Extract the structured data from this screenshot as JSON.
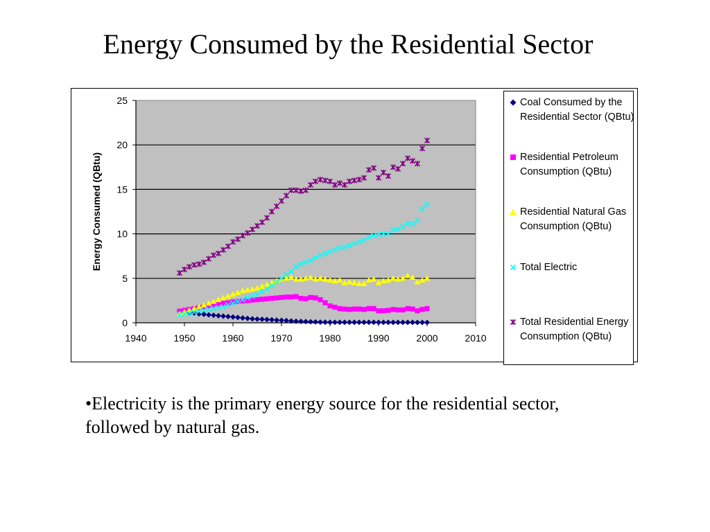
{
  "slide": {
    "title": "Energy Consumed by the Residential Sector",
    "bullet": "•Electricity is the primary energy source for the residential sector, followed by natural gas."
  },
  "chart_data": {
    "type": "scatter",
    "title": "",
    "xlabel": "",
    "ylabel": "Energy Consumed (QBtu)",
    "xlim": [
      1940,
      2010
    ],
    "ylim": [
      0,
      25
    ],
    "x_ticks": [
      "1940",
      "1950",
      "1960",
      "1970",
      "1980",
      "1990",
      "2000",
      "2010"
    ],
    "y_ticks": [
      "0",
      "5",
      "10",
      "15",
      "20",
      "25"
    ],
    "grid": "horizontal",
    "plot_background": "#C0C0C0",
    "legend_position": "right",
    "x": [
      1949,
      1950,
      1951,
      1952,
      1953,
      1954,
      1955,
      1956,
      1957,
      1958,
      1959,
      1960,
      1961,
      1962,
      1963,
      1964,
      1965,
      1966,
      1967,
      1968,
      1969,
      1970,
      1971,
      1972,
      1973,
      1974,
      1975,
      1976,
      1977,
      1978,
      1979,
      1980,
      1981,
      1982,
      1983,
      1984,
      1985,
      1986,
      1987,
      1988,
      1989,
      1990,
      1991,
      1992,
      1993,
      1994,
      1995,
      1996,
      1997,
      1998,
      1999,
      2000
    ],
    "series": [
      {
        "name": "Coal Consumed by the Residential Sector (QBtu)",
        "color": "#000080",
        "marker": "diamond",
        "values": [
          1.3,
          1.25,
          1.15,
          1.1,
          1.0,
          0.95,
          0.9,
          0.85,
          0.8,
          0.75,
          0.7,
          0.65,
          0.6,
          0.55,
          0.5,
          0.45,
          0.42,
          0.4,
          0.37,
          0.34,
          0.3,
          0.28,
          0.25,
          0.2,
          0.18,
          0.16,
          0.14,
          0.12,
          0.1,
          0.08,
          0.07,
          0.06,
          0.06,
          0.06,
          0.06,
          0.06,
          0.06,
          0.06,
          0.06,
          0.06,
          0.06,
          0.05,
          0.05,
          0.05,
          0.05,
          0.05,
          0.05,
          0.05,
          0.05,
          0.04,
          0.04,
          0.04
        ]
      },
      {
        "name": "Residential Petroleum Consumption (QBtu)",
        "color": "#FF00FF",
        "marker": "square",
        "values": [
          1.3,
          1.4,
          1.5,
          1.6,
          1.7,
          1.8,
          1.9,
          2.0,
          2.1,
          2.2,
          2.25,
          2.35,
          2.4,
          2.45,
          2.5,
          2.55,
          2.6,
          2.65,
          2.7,
          2.75,
          2.8,
          2.85,
          2.9,
          2.9,
          2.95,
          2.75,
          2.7,
          2.85,
          2.8,
          2.6,
          2.25,
          1.9,
          1.75,
          1.6,
          1.55,
          1.5,
          1.55,
          1.55,
          1.5,
          1.6,
          1.6,
          1.35,
          1.35,
          1.4,
          1.5,
          1.45,
          1.45,
          1.6,
          1.55,
          1.35,
          1.5,
          1.6
        ]
      },
      {
        "name": "Residential Natural Gas Consumption (QBtu)",
        "color": "#FFFF00",
        "marker": "triangle",
        "values": [
          1.0,
          1.2,
          1.4,
          1.6,
          1.8,
          2.0,
          2.2,
          2.4,
          2.6,
          2.8,
          3.0,
          3.2,
          3.4,
          3.6,
          3.7,
          3.8,
          3.9,
          4.1,
          4.3,
          4.5,
          4.7,
          4.9,
          5.0,
          5.1,
          4.9,
          4.9,
          5.0,
          5.1,
          4.9,
          5.0,
          4.9,
          4.8,
          4.7,
          4.8,
          4.5,
          4.6,
          4.5,
          4.4,
          4.4,
          4.8,
          4.9,
          4.5,
          4.7,
          4.8,
          5.0,
          4.9,
          5.0,
          5.3,
          5.1,
          4.6,
          4.8,
          5.0
        ]
      },
      {
        "name": "Total Electric",
        "color": "#00FFFF",
        "marker": "x",
        "values": [
          0.9,
          1.0,
          1.1,
          1.2,
          1.3,
          1.4,
          1.5,
          1.6,
          1.7,
          1.8,
          2.0,
          2.2,
          2.4,
          2.6,
          2.8,
          3.0,
          3.2,
          3.5,
          3.8,
          4.2,
          4.6,
          5.0,
          5.4,
          5.8,
          6.3,
          6.6,
          6.8,
          7.0,
          7.3,
          7.6,
          7.8,
          8.0,
          8.2,
          8.4,
          8.5,
          8.7,
          8.9,
          9.1,
          9.3,
          9.6,
          9.8,
          9.9,
          10.0,
          10.0,
          10.4,
          10.5,
          10.8,
          11.2,
          11.1,
          11.5,
          12.8,
          13.3
        ]
      },
      {
        "name": "Total Residential Energy Consumption (QBtu)",
        "color": "#800080",
        "marker": "star",
        "values": [
          5.6,
          6.0,
          6.3,
          6.5,
          6.6,
          6.8,
          7.2,
          7.6,
          7.8,
          8.2,
          8.6,
          9.1,
          9.4,
          9.8,
          10.1,
          10.5,
          10.9,
          11.3,
          11.8,
          12.5,
          13.1,
          13.7,
          14.3,
          14.9,
          14.9,
          14.8,
          14.9,
          15.5,
          15.9,
          16.1,
          16.0,
          15.9,
          15.5,
          15.7,
          15.5,
          15.9,
          16.0,
          16.1,
          16.3,
          17.2,
          17.4,
          16.3,
          16.9,
          16.5,
          17.5,
          17.3,
          17.9,
          18.5,
          18.2,
          17.9,
          19.6,
          20.5
        ]
      }
    ]
  }
}
